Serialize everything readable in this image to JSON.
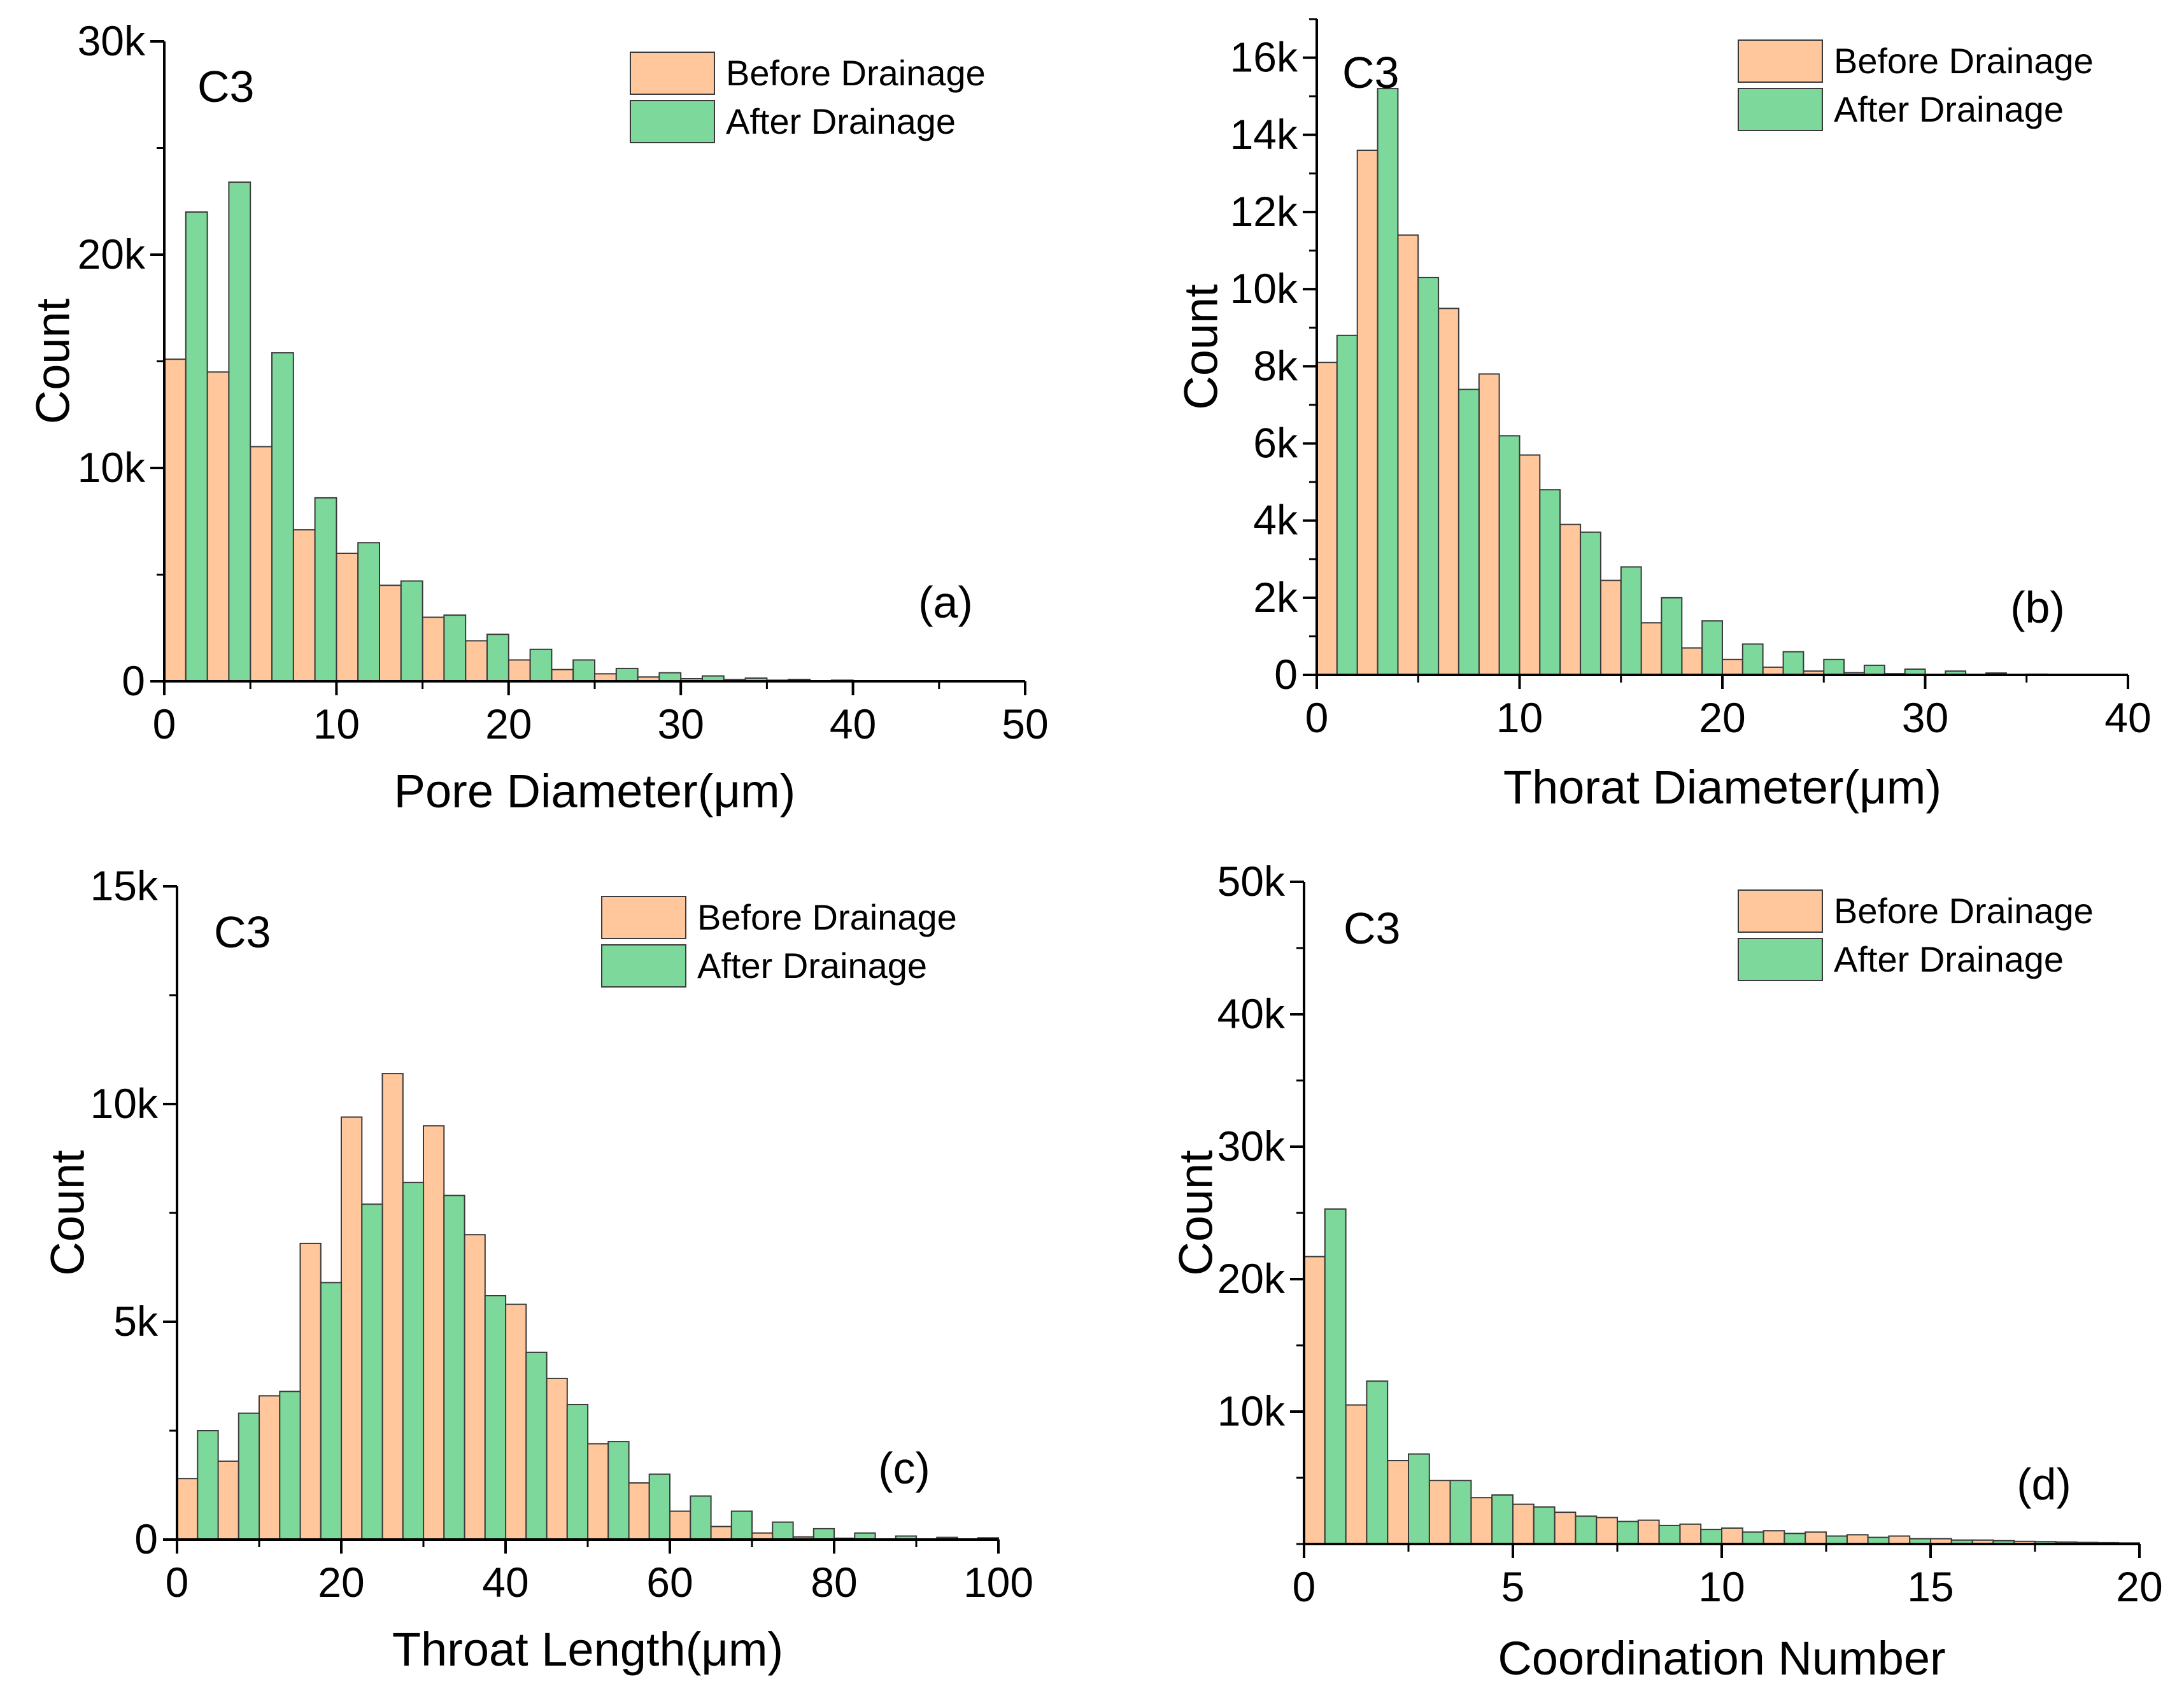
{
  "colors": {
    "before": "#FFC79B",
    "after": "#7DD99B",
    "bar_edge": "#3a3a3a",
    "axis": "#000000"
  },
  "chart_data": [
    {
      "id": "a",
      "type": "bar",
      "panel_label": "(a)",
      "sample_label": "C3",
      "xlabel": "Pore Diameter(μm)",
      "ylabel": "Count",
      "xlim": [
        0,
        50
      ],
      "ylim": [
        0,
        30000
      ],
      "bin_width": 2.5,
      "x_ticks": [
        0,
        10,
        20,
        30,
        40,
        50
      ],
      "x_tick_labels": [
        "0",
        "10",
        "20",
        "30",
        "40",
        "50"
      ],
      "y_ticks": [
        0,
        10000,
        20000,
        30000
      ],
      "y_tick_labels": [
        "0",
        "10k",
        "20k",
        "30k"
      ],
      "y_minor": 5000,
      "legend_position": "top-right",
      "series": [
        {
          "name": "Before Drainage",
          "values": [
            15100,
            14500,
            11000,
            7100,
            6000,
            4500,
            3000,
            1900,
            1000,
            550,
            350,
            200,
            120,
            80,
            50,
            30,
            20,
            10,
            5,
            0
          ]
        },
        {
          "name": "After Drainage",
          "values": [
            22000,
            23400,
            15400,
            8600,
            6500,
            4700,
            3100,
            2200,
            1500,
            1000,
            600,
            400,
            250,
            150,
            90,
            50,
            30,
            15,
            8,
            0
          ]
        }
      ]
    },
    {
      "id": "b",
      "type": "bar",
      "panel_label": "(b)",
      "sample_label": "C3",
      "xlabel": "Thorat Diameter(μm)",
      "ylabel": "Count",
      "xlim": [
        0,
        40
      ],
      "ylim": [
        0,
        17000
      ],
      "bin_width": 2.0,
      "x_ticks": [
        0,
        10,
        20,
        30,
        40
      ],
      "x_tick_labels": [
        "0",
        "10",
        "20",
        "30",
        "40"
      ],
      "y_ticks": [
        0,
        2000,
        4000,
        6000,
        8000,
        10000,
        12000,
        14000,
        16000
      ],
      "y_tick_labels": [
        "0",
        "2k",
        "4k",
        "6k",
        "8k",
        "10k",
        "12k",
        "14k",
        "16k"
      ],
      "y_minor": 1000,
      "legend_position": "top-right",
      "series": [
        {
          "name": "Before Drainage",
          "values": [
            8100,
            13600,
            11400,
            9500,
            7800,
            5700,
            3900,
            2450,
            1350,
            700,
            400,
            200,
            100,
            60,
            30,
            15,
            8,
            0,
            0,
            0
          ]
        },
        {
          "name": "After Drainage",
          "values": [
            8800,
            15200,
            10300,
            7400,
            6200,
            4800,
            3700,
            2800,
            2000,
            1400,
            800,
            600,
            400,
            250,
            150,
            100,
            50,
            20,
            10,
            0
          ]
        }
      ]
    },
    {
      "id": "c",
      "type": "bar",
      "panel_label": "(c)",
      "sample_label": "C3",
      "xlabel": "Throat Length(μm)",
      "ylabel": "Count",
      "xlim": [
        0,
        100
      ],
      "ylim": [
        0,
        15000
      ],
      "bin_width": 5.0,
      "x_ticks": [
        0,
        20,
        40,
        60,
        80,
        100
      ],
      "x_tick_labels": [
        "0",
        "20",
        "40",
        "60",
        "80",
        "100"
      ],
      "y_ticks": [
        0,
        5000,
        10000,
        15000
      ],
      "y_tick_labels": [
        "0",
        "5k",
        "10k",
        "15k"
      ],
      "y_minor": 2500,
      "legend_position": "top-right",
      "series": [
        {
          "name": "Before Drainage",
          "values": [
            1400,
            1800,
            3300,
            6800,
            9700,
            10700,
            9500,
            7000,
            5400,
            3700,
            2200,
            1300,
            650,
            300,
            150,
            60,
            30,
            15,
            5,
            0
          ]
        },
        {
          "name": "After Drainage",
          "values": [
            2500,
            2900,
            3400,
            5900,
            7700,
            8200,
            7900,
            5600,
            4300,
            3100,
            2250,
            1500,
            1000,
            650,
            400,
            250,
            150,
            80,
            50,
            40
          ]
        }
      ]
    },
    {
      "id": "d",
      "type": "bar",
      "panel_label": "(d)",
      "sample_label": "C3",
      "xlabel": "Coordination Number",
      "ylabel": "Count",
      "xlim": [
        0,
        20
      ],
      "ylim": [
        0,
        50000
      ],
      "bin_width": 1.0,
      "x_ticks": [
        0,
        5,
        10,
        15,
        20
      ],
      "x_tick_labels": [
        "0",
        "5",
        "10",
        "15",
        "20"
      ],
      "y_ticks": [
        10000,
        20000,
        30000,
        40000,
        50000
      ],
      "y_tick_labels": [
        "10k",
        "20k",
        "30k",
        "40k",
        "50k"
      ],
      "y_minor": 5000,
      "legend_position": "top-right",
      "series": [
        {
          "name": "Before Drainage",
          "values": [
            21700,
            10500,
            6300,
            4800,
            3500,
            3000,
            2400,
            2000,
            1800,
            1500,
            1200,
            1000,
            900,
            700,
            600,
            400,
            300,
            200,
            150,
            100
          ]
        },
        {
          "name": "After Drainage",
          "values": [
            25300,
            12300,
            6800,
            4800,
            3700,
            2800,
            2100,
            1700,
            1400,
            1100,
            900,
            800,
            600,
            500,
            400,
            300,
            250,
            180,
            120,
            80
          ]
        }
      ]
    }
  ]
}
